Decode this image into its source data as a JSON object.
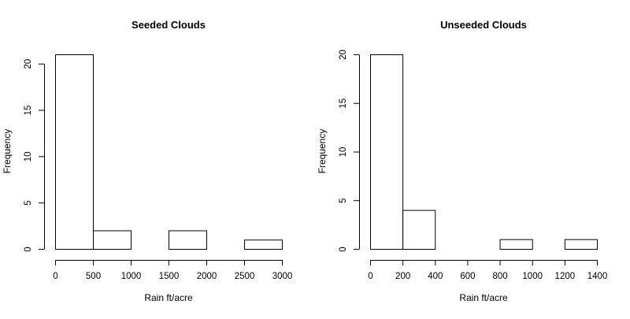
{
  "chart_data": [
    {
      "type": "bar",
      "title": "Seeded Clouds",
      "xlabel": "Rain ft/acre",
      "ylabel": "Frequency",
      "bins": [
        [
          0,
          500
        ],
        [
          500,
          1000
        ],
        [
          1000,
          1500
        ],
        [
          1500,
          2000
        ],
        [
          2000,
          2500
        ],
        [
          2500,
          3000
        ]
      ],
      "values": [
        21,
        2,
        0,
        2,
        0,
        1
      ],
      "xlim": [
        0,
        3000
      ],
      "ylim": [
        0,
        21
      ],
      "xticks": [
        "0",
        "500",
        "1000",
        "1500",
        "2000",
        "2500",
        "3000"
      ],
      "yticks": [
        "0",
        "5",
        "10",
        "15",
        "20"
      ]
    },
    {
      "type": "bar",
      "title": "Unseeded Clouds",
      "xlabel": "Rain ft/acre",
      "ylabel": "Frequency",
      "bins": [
        [
          0,
          200
        ],
        [
          200,
          400
        ],
        [
          400,
          600
        ],
        [
          600,
          800
        ],
        [
          800,
          1000
        ],
        [
          1000,
          1200
        ],
        [
          1200,
          1400
        ]
      ],
      "values": [
        20,
        4,
        0,
        0,
        1,
        0,
        1
      ],
      "xlim": [
        0,
        1400
      ],
      "ylim": [
        0,
        20
      ],
      "xticks": [
        "0",
        "200",
        "400",
        "600",
        "800",
        "1000",
        "1200",
        "1400"
      ],
      "yticks": [
        "0",
        "5",
        "10",
        "15",
        "20"
      ]
    }
  ]
}
